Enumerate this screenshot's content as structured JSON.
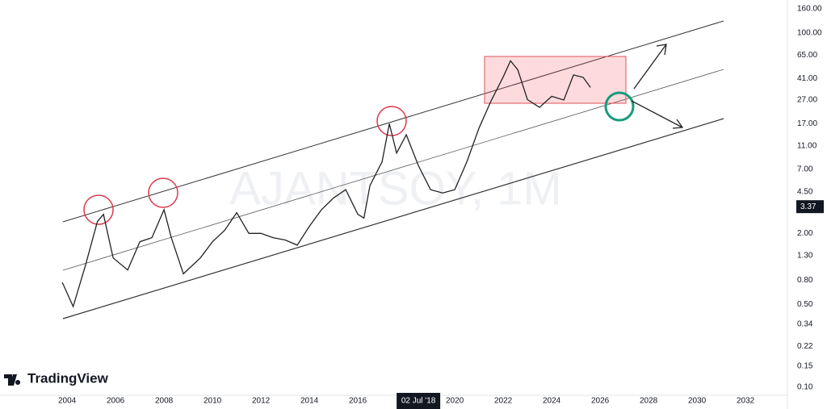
{
  "chart_data": {
    "type": "line",
    "watermark": "AJANTSOY, 1M",
    "brand": "TradingView",
    "x": [
      2003.8,
      2004.25,
      2004.75,
      2005.25,
      2005.5,
      2005.9,
      2006.5,
      2007,
      2007.5,
      2008,
      2008.3,
      2008.8,
      2009.5,
      2010,
      2010.5,
      2011,
      2011.5,
      2012,
      2012.5,
      2013,
      2013.5,
      2014,
      2014.5,
      2015,
      2015.5,
      2016,
      2016.25,
      2016.5,
      2017,
      2017.3,
      2017.6,
      2018,
      2018.5,
      2019,
      2019.5,
      2020,
      2020.5,
      2021,
      2021.5,
      2022,
      2022.3,
      2022.6,
      2023,
      2023.5,
      2024,
      2024.5,
      2024.9,
      2025.3,
      2025.6
    ],
    "series": [
      {
        "color": "#222222",
        "values": [
          0.77,
          0.48,
          1.06,
          2.52,
          2.9,
          1.24,
          0.98,
          1.7,
          1.84,
          3.18,
          1.84,
          0.91,
          1.24,
          1.7,
          2.12,
          3.0,
          2.0,
          2.0,
          1.84,
          1.76,
          1.59,
          2.3,
          3.18,
          4.0,
          4.7,
          2.9,
          2.7,
          5.1,
          8.1,
          17,
          9.6,
          13.7,
          7.5,
          4.7,
          4.4,
          4.7,
          8.1,
          15.6,
          26.6,
          42.4,
          58,
          48.7,
          27.2,
          23.4,
          29,
          27,
          44,
          42,
          34.5
        ]
      }
    ],
    "xlim": [
      2001.23,
      2033.73
    ],
    "ylim": [
      0.085,
      190
    ],
    "log_y": true,
    "grid": false,
    "xticks": [
      2004,
      2006,
      2008,
      2010,
      2012,
      2014,
      2016,
      2018,
      2020,
      2022,
      2024,
      2026,
      2028,
      2030,
      2032
    ],
    "yticks": [
      {
        "value": 0.1,
        "label": "0.10"
      },
      0.15,
      0.22,
      0.34,
      {
        "value": 0.5,
        "label": "0.50"
      },
      {
        "value": 0.8,
        "label": "0.80"
      },
      {
        "value": 1.3,
        "label": "1.30"
      },
      {
        "value": 2,
        "label": "2.00"
      },
      {
        "value": 4.5,
        "label": "4.50"
      },
      {
        "value": 7,
        "label": "7.00"
      },
      {
        "value": 11,
        "label": "11.00"
      },
      {
        "value": 17,
        "label": "17.00"
      },
      {
        "value": 27,
        "label": "27.00"
      },
      {
        "value": 41,
        "label": "41.00"
      },
      {
        "value": 65,
        "label": "65.00"
      },
      {
        "value": 100,
        "label": "100.00"
      },
      {
        "value": 160,
        "label": "160.00"
      }
    ],
    "crosshair": {
      "x": 2018.5,
      "x_label": "02 Jul '18",
      "y": 3.37
    }
  }
}
